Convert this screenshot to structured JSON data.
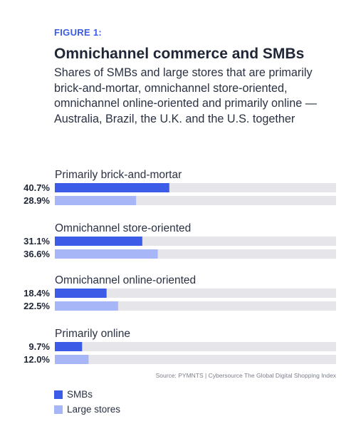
{
  "figure_label": "FIGURE 1:",
  "title": "Omnichannel commerce and SMBs",
  "subtitle": "Shares of SMBs and large stores that are primarily brick-and-mortar, omnichannel store-oriented, omnichannel online-oriented and primarily online — Australia, Brazil, the U.K. and the U.S. together",
  "source": "Source: PYMNTS | Cybersource The Global Digital Shopping Index",
  "colors": {
    "smb": "#3c5ce8",
    "large": "#a6b6f6",
    "track": "#e6e6ea"
  },
  "chart_data": {
    "type": "bar",
    "orientation": "horizontal",
    "categories": [
      "Primarily brick-and-mortar",
      "Omnichannel store-oriented",
      "Omnichannel online-oriented",
      "Primarily online"
    ],
    "series": [
      {
        "name": "SMBs",
        "values": [
          40.7,
          31.1,
          18.4,
          9.7
        ],
        "labels": [
          "40.7%",
          "31.1%",
          "18.4%",
          "9.7%"
        ]
      },
      {
        "name": "Large stores",
        "values": [
          28.9,
          36.6,
          22.5,
          12.0
        ],
        "labels": [
          "28.9%",
          "36.6%",
          "22.5%",
          "12.0%"
        ]
      }
    ],
    "xlim": [
      0,
      100
    ],
    "legend": "bottom-left"
  }
}
